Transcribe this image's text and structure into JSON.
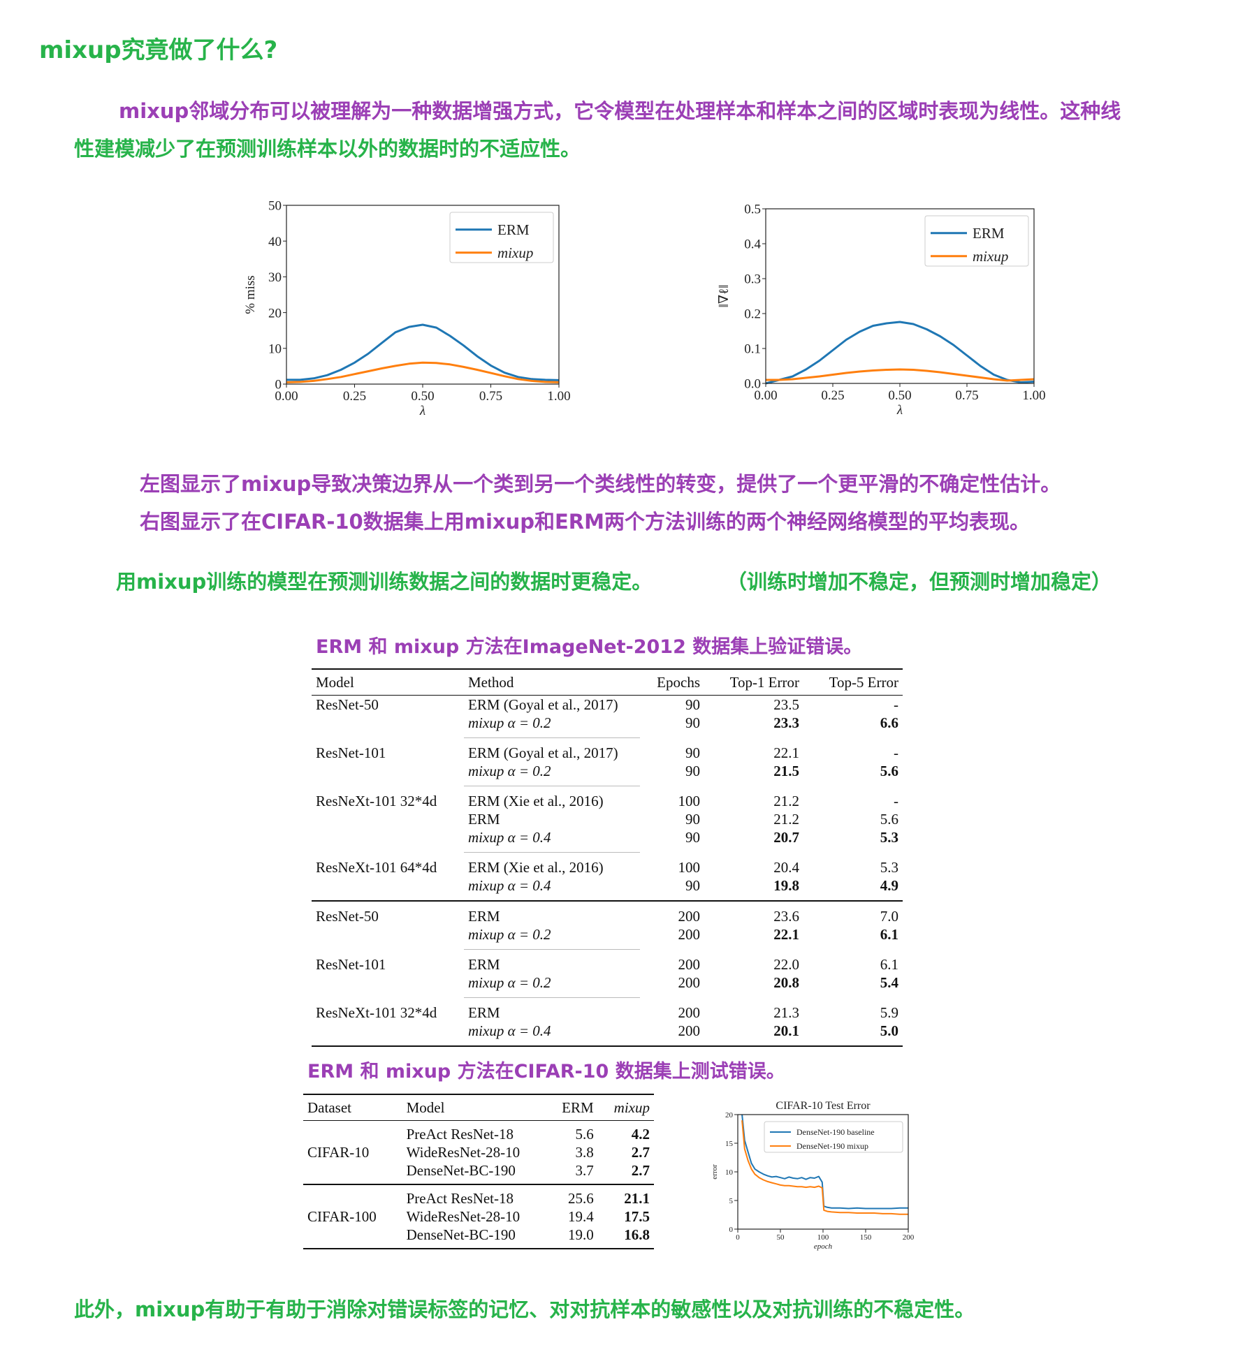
{
  "heading": "mixup究竟做了什么?",
  "intro": {
    "line1": "mixup邻域分布可以被理解为一种数据增强方式，它令模型在处理样本和样本之间的区域时表现为线性。这种线",
    "line2": "性建模减少了在预测训练样本以外的数据时的不适应性。"
  },
  "chart_data": [
    {
      "type": "line",
      "xlabel": "λ",
      "ylabel": "% miss",
      "xlim": [
        0,
        1
      ],
      "ylim": [
        0,
        50
      ],
      "xticks": [
        "0.00",
        "0.25",
        "0.50",
        "0.75",
        "1.00"
      ],
      "yticks": [
        "0",
        "10",
        "20",
        "30",
        "40",
        "50"
      ],
      "legend": "top-right",
      "series": [
        {
          "name": "ERM",
          "color": "#1f77b4",
          "x": [
            0.0,
            0.05,
            0.1,
            0.15,
            0.2,
            0.25,
            0.3,
            0.35,
            0.4,
            0.45,
            0.5,
            0.55,
            0.6,
            0.65,
            0.7,
            0.75,
            0.8,
            0.85,
            0.9,
            0.95,
            1.0
          ],
          "y": [
            1.2,
            1.2,
            1.6,
            2.5,
            4.0,
            6.0,
            8.5,
            11.5,
            14.5,
            16.0,
            16.6,
            15.8,
            13.5,
            10.8,
            7.8,
            5.2,
            3.2,
            2.0,
            1.4,
            1.2,
            1.1
          ]
        },
        {
          "name": "mixup",
          "color": "#ff7f0e",
          "x": [
            0.0,
            0.05,
            0.1,
            0.15,
            0.2,
            0.25,
            0.3,
            0.35,
            0.4,
            0.45,
            0.5,
            0.55,
            0.6,
            0.65,
            0.7,
            0.75,
            0.8,
            0.85,
            0.9,
            0.95,
            1.0
          ],
          "y": [
            0.5,
            0.6,
            0.9,
            1.4,
            2.0,
            2.8,
            3.6,
            4.4,
            5.1,
            5.7,
            6.0,
            5.9,
            5.5,
            4.8,
            4.0,
            3.1,
            2.2,
            1.4,
            0.9,
            0.6,
            0.5
          ]
        }
      ]
    },
    {
      "type": "line",
      "xlabel": "λ",
      "ylabel": "‖∇ℓ‖",
      "xlim": [
        0,
        1
      ],
      "ylim": [
        0,
        0.5
      ],
      "xticks": [
        "0.00",
        "0.25",
        "0.50",
        "0.75",
        "1.00"
      ],
      "yticks": [
        "0.0",
        "0.1",
        "0.2",
        "0.3",
        "0.4",
        "0.5"
      ],
      "legend": "top-right",
      "series": [
        {
          "name": "ERM",
          "color": "#1f77b4",
          "x": [
            0.0,
            0.05,
            0.1,
            0.15,
            0.2,
            0.25,
            0.3,
            0.35,
            0.4,
            0.45,
            0.5,
            0.55,
            0.6,
            0.65,
            0.7,
            0.75,
            0.8,
            0.85,
            0.9,
            0.95,
            1.0
          ],
          "y": [
            0.0,
            0.01,
            0.02,
            0.04,
            0.065,
            0.095,
            0.125,
            0.148,
            0.165,
            0.172,
            0.176,
            0.17,
            0.155,
            0.135,
            0.11,
            0.08,
            0.05,
            0.025,
            0.01,
            0.003,
            0.005
          ]
        },
        {
          "name": "mixup",
          "color": "#ff7f0e",
          "x": [
            0.0,
            0.05,
            0.1,
            0.15,
            0.2,
            0.25,
            0.3,
            0.35,
            0.4,
            0.45,
            0.5,
            0.55,
            0.6,
            0.65,
            0.7,
            0.75,
            0.8,
            0.85,
            0.9,
            0.95,
            1.0
          ],
          "y": [
            0.01,
            0.01,
            0.012,
            0.016,
            0.02,
            0.025,
            0.03,
            0.034,
            0.037,
            0.039,
            0.04,
            0.039,
            0.036,
            0.032,
            0.027,
            0.022,
            0.017,
            0.012,
            0.008,
            0.01,
            0.012
          ]
        }
      ]
    },
    {
      "type": "line",
      "title": "CIFAR-10 Test Error",
      "xlabel": "epoch",
      "ylabel": "error",
      "xlim": [
        0,
        200
      ],
      "ylim": [
        0,
        20
      ],
      "xticks": [
        "0",
        "50",
        "100",
        "150",
        "200"
      ],
      "yticks": [
        "0",
        "5",
        "10",
        "15",
        "20"
      ],
      "legend": "top-right",
      "series": [
        {
          "name": "DenseNet-190 baseline",
          "color": "#1f77b4",
          "x": [
            5,
            8,
            12,
            16,
            20,
            25,
            30,
            35,
            40,
            45,
            50,
            55,
            60,
            65,
            70,
            75,
            80,
            85,
            90,
            95,
            99,
            101,
            105,
            110,
            120,
            130,
            140,
            150,
            160,
            170,
            180,
            190,
            200
          ],
          "y": [
            20,
            15.5,
            13.5,
            11.5,
            10.5,
            10.0,
            9.6,
            9.3,
            9.1,
            9.2,
            9.0,
            8.8,
            9.1,
            8.9,
            8.8,
            9.0,
            8.7,
            9.0,
            8.9,
            9.2,
            8.2,
            4.0,
            3.8,
            3.7,
            3.7,
            3.6,
            3.7,
            3.6,
            3.6,
            3.6,
            3.6,
            3.7,
            3.7
          ]
        },
        {
          "name": "DenseNet-190 mixup",
          "color": "#ff7f0e",
          "x": [
            5,
            8,
            12,
            16,
            20,
            25,
            30,
            35,
            40,
            45,
            50,
            55,
            60,
            65,
            70,
            75,
            80,
            85,
            90,
            95,
            99,
            101,
            105,
            110,
            120,
            130,
            140,
            150,
            160,
            170,
            180,
            190,
            200
          ],
          "y": [
            19,
            14,
            12,
            10.5,
            9.6,
            9.0,
            8.6,
            8.3,
            8.1,
            7.9,
            7.7,
            7.6,
            7.6,
            7.5,
            7.4,
            7.4,
            7.3,
            7.4,
            7.3,
            7.5,
            7.2,
            3.3,
            3.1,
            3.0,
            2.9,
            2.9,
            2.8,
            2.8,
            2.8,
            2.7,
            2.7,
            2.6,
            2.6
          ]
        }
      ]
    }
  ],
  "desc": {
    "line1": "左图显示了mixup导致决策边界从一个类到另一个类线性的转变，提供了一个更平滑的不确定性估计。",
    "line2": "右图显示了在CIFAR-10数据集上用mixup和ERM两个方法训练的两个神经网络模型的平均表现。"
  },
  "stable": {
    "main": "用mixup训练的模型在预测训练数据之间的数据时更稳定。",
    "paren": "（训练时增加不稳定，但预测时增加稳定）"
  },
  "imagenet": {
    "caption": "ERM 和 mixup 方法在ImageNet-2012 数据集上验证错误。",
    "headers": [
      "Model",
      "Method",
      "Epochs",
      "Top-1 Error",
      "Top-5 Error"
    ],
    "groups": [
      {
        "model": "ResNet-50",
        "rows": [
          {
            "method": "ERM (Goyal et al., 2017)",
            "epochs": "90",
            "top1": "23.5",
            "top5": "-"
          },
          {
            "method": "mixup α = 0.2",
            "epochs": "90",
            "top1": "23.3",
            "top5": "6.6",
            "bold": true
          }
        ]
      },
      {
        "model": "ResNet-101",
        "rows": [
          {
            "method": "ERM (Goyal et al., 2017)",
            "epochs": "90",
            "top1": "22.1",
            "top5": "-"
          },
          {
            "method": "mixup α = 0.2",
            "epochs": "90",
            "top1": "21.5",
            "top5": "5.6",
            "bold": true
          }
        ]
      },
      {
        "model": "ResNeXt-101 32*4d",
        "rows": [
          {
            "method": "ERM (Xie et al., 2016)",
            "epochs": "100",
            "top1": "21.2",
            "top5": "-"
          },
          {
            "method": "ERM",
            "epochs": "90",
            "top1": "21.2",
            "top5": "5.6"
          },
          {
            "method": "mixup α = 0.4",
            "epochs": "90",
            "top1": "20.7",
            "top5": "5.3",
            "bold": true
          }
        ]
      },
      {
        "model": "ResNeXt-101 64*4d",
        "rows": [
          {
            "method": "ERM (Xie et al., 2016)",
            "epochs": "100",
            "top1": "20.4",
            "top5": "5.3"
          },
          {
            "method": "mixup α = 0.4",
            "epochs": "90",
            "top1": "19.8",
            "top5": "4.9",
            "bold": true
          }
        ]
      },
      {
        "model": "ResNet-50",
        "rows": [
          {
            "method": "ERM",
            "epochs": "200",
            "top1": "23.6",
            "top5": "7.0"
          },
          {
            "method": "mixup α = 0.2",
            "epochs": "200",
            "top1": "22.1",
            "top5": "6.1",
            "bold": true
          }
        ]
      },
      {
        "model": "ResNet-101",
        "rows": [
          {
            "method": "ERM",
            "epochs": "200",
            "top1": "22.0",
            "top5": "6.1"
          },
          {
            "method": "mixup α = 0.2",
            "epochs": "200",
            "top1": "20.8",
            "top5": "5.4",
            "bold": true
          }
        ]
      },
      {
        "model": "ResNeXt-101 32*4d",
        "rows": [
          {
            "method": "ERM",
            "epochs": "200",
            "top1": "21.3",
            "top5": "5.9"
          },
          {
            "method": "mixup α = 0.4",
            "epochs": "200",
            "top1": "20.1",
            "top5": "5.0",
            "bold": true
          }
        ]
      }
    ]
  },
  "cifar": {
    "caption": "ERM 和 mixup 方法在CIFAR-10 数据集上测试错误。",
    "headers": [
      "Dataset",
      "Model",
      "ERM",
      "mixup"
    ],
    "groups": [
      {
        "dataset": "CIFAR-10",
        "rows": [
          {
            "model": "PreAct ResNet-18",
            "erm": "5.6",
            "mixup": "4.2"
          },
          {
            "model": "WideResNet-28-10",
            "erm": "3.8",
            "mixup": "2.7"
          },
          {
            "model": "DenseNet-BC-190",
            "erm": "3.7",
            "mixup": "2.7"
          }
        ]
      },
      {
        "dataset": "CIFAR-100",
        "rows": [
          {
            "model": "PreAct ResNet-18",
            "erm": "25.6",
            "mixup": "21.1"
          },
          {
            "model": "WideResNet-28-10",
            "erm": "19.4",
            "mixup": "17.5"
          },
          {
            "model": "DenseNet-BC-190",
            "erm": "19.0",
            "mixup": "16.8"
          }
        ]
      }
    ]
  },
  "conclusion": "此外，mixup有助于有助于消除对错误标签的记忆、对对抗样本的敏感性以及对抗训练的不稳定性。"
}
